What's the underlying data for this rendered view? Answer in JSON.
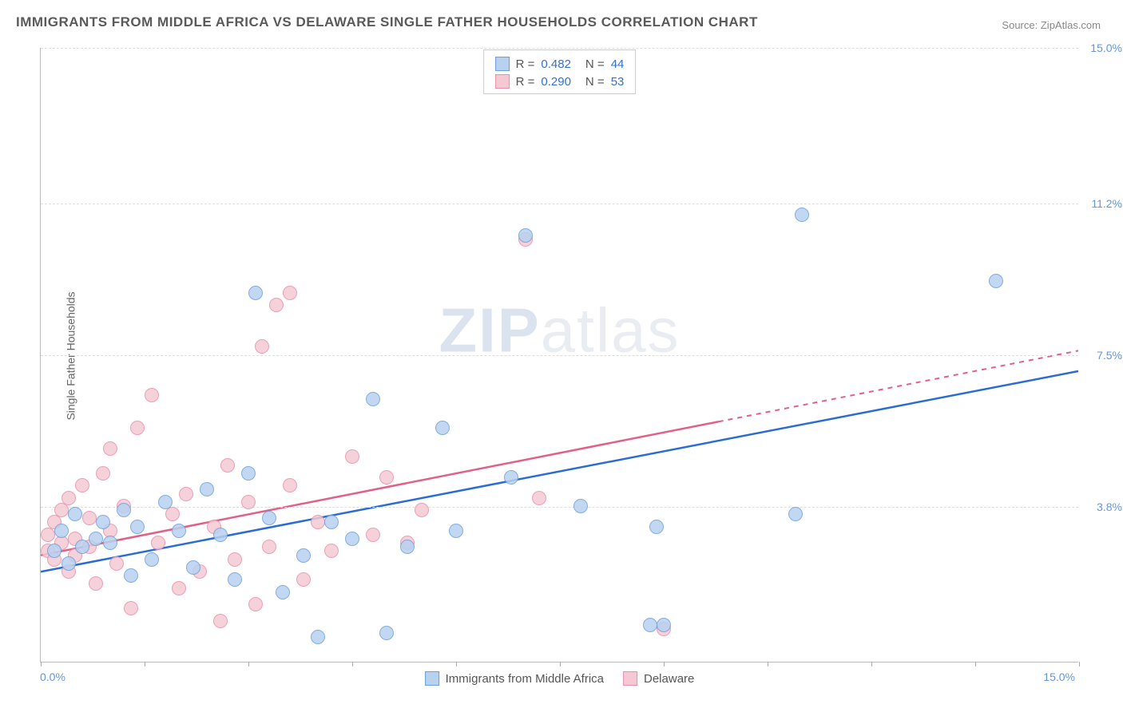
{
  "title": "IMMIGRANTS FROM MIDDLE AFRICA VS DELAWARE SINGLE FATHER HOUSEHOLDS CORRELATION CHART",
  "source_label": "Source:",
  "source_name": "ZipAtlas.com",
  "ylabel": "Single Father Households",
  "watermark": {
    "bold": "ZIP",
    "rest": "atlas"
  },
  "chart": {
    "type": "scatter",
    "xlim": [
      0.0,
      15.0
    ],
    "ylim": [
      0.0,
      15.0
    ],
    "x_min_label": "0.0%",
    "x_max_label": "15.0%",
    "y_ticks": [
      3.8,
      7.5,
      11.2,
      15.0
    ],
    "y_tick_labels": [
      "3.8%",
      "7.5%",
      "11.2%",
      "15.0%"
    ],
    "x_ticks": [
      0,
      1.5,
      3.0,
      4.5,
      6.0,
      7.5,
      9.0,
      10.5,
      12.0,
      13.5,
      15.0
    ],
    "grid_color": "#dddddd",
    "axis_color": "#bbbbbb",
    "background_color": "#ffffff",
    "tick_label_color": "#6396d8",
    "series": [
      {
        "name": "Immigrants from Middle Africa",
        "color_fill": "#b8d1ef",
        "color_stroke": "#6c9fdd",
        "line_color": "#2b6cd4",
        "marker_radius": 9,
        "R": "0.482",
        "N": "44",
        "trend": {
          "x1": 0.0,
          "y1": 2.2,
          "x2": 15.0,
          "y2": 7.1,
          "dash_from_x": 15.0
        },
        "points": [
          [
            0.2,
            2.7
          ],
          [
            0.3,
            3.2
          ],
          [
            0.4,
            2.4
          ],
          [
            0.5,
            3.6
          ],
          [
            0.6,
            2.8
          ],
          [
            0.8,
            3.0
          ],
          [
            0.9,
            3.4
          ],
          [
            1.0,
            2.9
          ],
          [
            1.2,
            3.7
          ],
          [
            1.3,
            2.1
          ],
          [
            1.4,
            3.3
          ],
          [
            1.6,
            2.5
          ],
          [
            1.8,
            3.9
          ],
          [
            2.0,
            3.2
          ],
          [
            2.2,
            2.3
          ],
          [
            2.4,
            4.2
          ],
          [
            2.6,
            3.1
          ],
          [
            2.8,
            2.0
          ],
          [
            3.0,
            4.6
          ],
          [
            3.1,
            9.0
          ],
          [
            3.3,
            3.5
          ],
          [
            3.5,
            1.7
          ],
          [
            3.8,
            2.6
          ],
          [
            4.0,
            0.6
          ],
          [
            4.2,
            3.4
          ],
          [
            4.5,
            3.0
          ],
          [
            4.8,
            6.4
          ],
          [
            5.0,
            0.7
          ],
          [
            5.3,
            2.8
          ],
          [
            5.8,
            5.7
          ],
          [
            6.0,
            3.2
          ],
          [
            6.8,
            4.5
          ],
          [
            7.0,
            10.4
          ],
          [
            7.8,
            3.8
          ],
          [
            8.8,
            0.9
          ],
          [
            8.9,
            3.3
          ],
          [
            9.0,
            0.9
          ],
          [
            10.9,
            3.6
          ],
          [
            11.0,
            10.9
          ],
          [
            13.8,
            9.3
          ]
        ]
      },
      {
        "name": "Delaware",
        "color_fill": "#f4c9d4",
        "color_stroke": "#e98fa9",
        "line_color": "#e26087",
        "marker_radius": 9,
        "R": "0.290",
        "N": "53",
        "trend": {
          "x1": 0.0,
          "y1": 2.6,
          "x2": 15.0,
          "y2": 7.6,
          "dash_from_x": 9.8
        },
        "points": [
          [
            0.1,
            2.7
          ],
          [
            0.1,
            3.1
          ],
          [
            0.2,
            2.5
          ],
          [
            0.2,
            3.4
          ],
          [
            0.3,
            2.9
          ],
          [
            0.3,
            3.7
          ],
          [
            0.4,
            2.2
          ],
          [
            0.4,
            4.0
          ],
          [
            0.5,
            3.0
          ],
          [
            0.5,
            2.6
          ],
          [
            0.6,
            4.3
          ],
          [
            0.7,
            3.5
          ],
          [
            0.7,
            2.8
          ],
          [
            0.8,
            1.9
          ],
          [
            0.9,
            4.6
          ],
          [
            1.0,
            3.2
          ],
          [
            1.0,
            5.2
          ],
          [
            1.1,
            2.4
          ],
          [
            1.2,
            3.8
          ],
          [
            1.3,
            1.3
          ],
          [
            1.4,
            5.7
          ],
          [
            1.6,
            6.5
          ],
          [
            1.7,
            2.9
          ],
          [
            1.9,
            3.6
          ],
          [
            2.0,
            1.8
          ],
          [
            2.1,
            4.1
          ],
          [
            2.3,
            2.2
          ],
          [
            2.5,
            3.3
          ],
          [
            2.6,
            1.0
          ],
          [
            2.7,
            4.8
          ],
          [
            2.8,
            2.5
          ],
          [
            3.0,
            3.9
          ],
          [
            3.1,
            1.4
          ],
          [
            3.2,
            7.7
          ],
          [
            3.3,
            2.8
          ],
          [
            3.4,
            8.7
          ],
          [
            3.6,
            4.3
          ],
          [
            3.6,
            9.0
          ],
          [
            3.8,
            2.0
          ],
          [
            4.0,
            3.4
          ],
          [
            4.2,
            2.7
          ],
          [
            4.5,
            5.0
          ],
          [
            4.8,
            3.1
          ],
          [
            5.0,
            4.5
          ],
          [
            5.3,
            2.9
          ],
          [
            5.5,
            3.7
          ],
          [
            7.0,
            10.3
          ],
          [
            7.2,
            4.0
          ],
          [
            9.0,
            0.8
          ]
        ]
      }
    ],
    "legend_items": [
      {
        "label": "Immigrants from Middle Africa",
        "fill": "#b8d1ef",
        "stroke": "#6c9fdd"
      },
      {
        "label": "Delaware",
        "fill": "#f4c9d4",
        "stroke": "#e98fa9"
      }
    ]
  }
}
